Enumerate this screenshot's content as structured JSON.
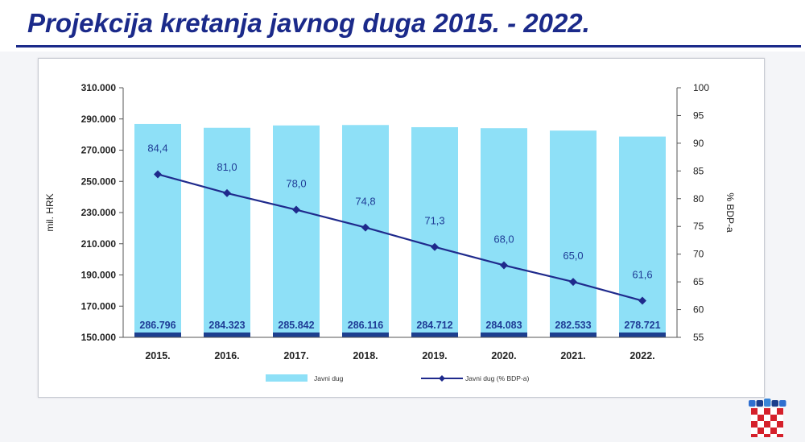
{
  "slide": {
    "title": "Projekcija kretanja javnog duga 2015. - 2022."
  },
  "colors": {
    "title": "#1b2a8a",
    "bar": "#8ee0f7",
    "bar_base": "#1d3f8f",
    "line": "#1f2a8c",
    "value_label": "#1f3c96"
  },
  "chart_data": {
    "type": "bar",
    "categories": [
      "2015.",
      "2016.",
      "2017.",
      "2018.",
      "2019.",
      "2020.",
      "2021.",
      "2022."
    ],
    "series": [
      {
        "name": "Javni dug",
        "type": "bar",
        "axis": "left",
        "values": [
          286796,
          284323,
          285842,
          286116,
          284712,
          284083,
          282533,
          278721
        ],
        "labels": [
          "286.796",
          "284.323",
          "285.842",
          "286.116",
          "284.712",
          "284.083",
          "282.533",
          "278.721"
        ]
      },
      {
        "name": "Javni dug (% BDP-a)",
        "type": "line",
        "axis": "right",
        "values": [
          84.4,
          81.0,
          78.0,
          74.8,
          71.3,
          68.0,
          65.0,
          61.6
        ],
        "labels": [
          "84,4",
          "81,0",
          "78,0",
          "74,8",
          "71,3",
          "68,0",
          "65,0",
          "61,6"
        ]
      }
    ],
    "ylabel": "mil. HRK",
    "y2label": "% BDP-a",
    "ylim": [
      150000,
      310000
    ],
    "y2lim": [
      55,
      100
    ],
    "yticks": [
      "150.000",
      "170.000",
      "190.000",
      "210.000",
      "230.000",
      "250.000",
      "270.000",
      "290.000",
      "310.000"
    ],
    "y2ticks": [
      "55",
      "60",
      "65",
      "70",
      "75",
      "80",
      "85",
      "90",
      "95",
      "100"
    ],
    "legend_position": "bottom",
    "grid": false
  }
}
